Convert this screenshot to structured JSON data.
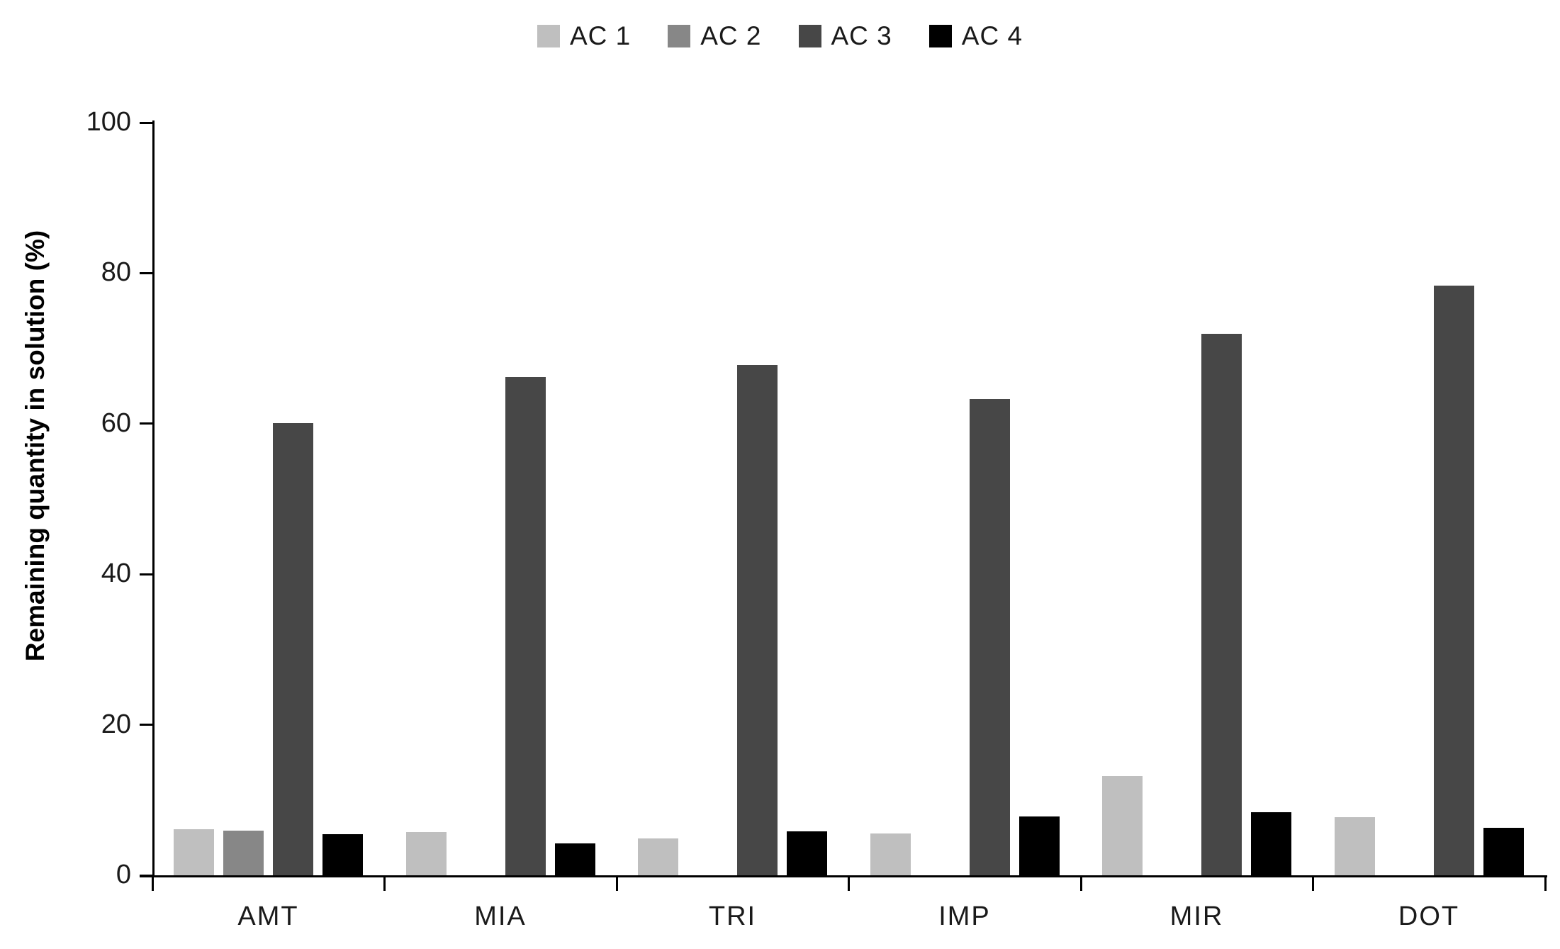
{
  "chart_data": {
    "type": "bar",
    "title": "",
    "categories": [
      "AMT",
      "MIA",
      "TRI",
      "IMP",
      "MIR",
      "DOT"
    ],
    "series": [
      {
        "name": "AC 1",
        "color": "#bfbfbf",
        "values": [
          6.1,
          5.7,
          4.9,
          5.6,
          13.2,
          7.7
        ]
      },
      {
        "name": "AC 2",
        "color": "#878787",
        "values": [
          5.9,
          0,
          0,
          0,
          0,
          0
        ]
      },
      {
        "name": "AC 3",
        "color": "#474747",
        "values": [
          60.1,
          66.2,
          67.8,
          63.3,
          71.9,
          78.3
        ]
      },
      {
        "name": "AC 4",
        "color": "#000000",
        "values": [
          5.5,
          4.2,
          5.8,
          7.8,
          8.4,
          6.3
        ]
      }
    ],
    "xlabel": "",
    "ylabel": "Remaining quantity in solution (%)",
    "ylim": [
      0,
      100
    ],
    "yticks": [
      0,
      20,
      40,
      60,
      80,
      100
    ],
    "grid": "off",
    "legend_position": "top-center",
    "legend_labels": [
      "AC 1",
      "AC 2",
      "AC 3",
      "AC 4"
    ]
  }
}
